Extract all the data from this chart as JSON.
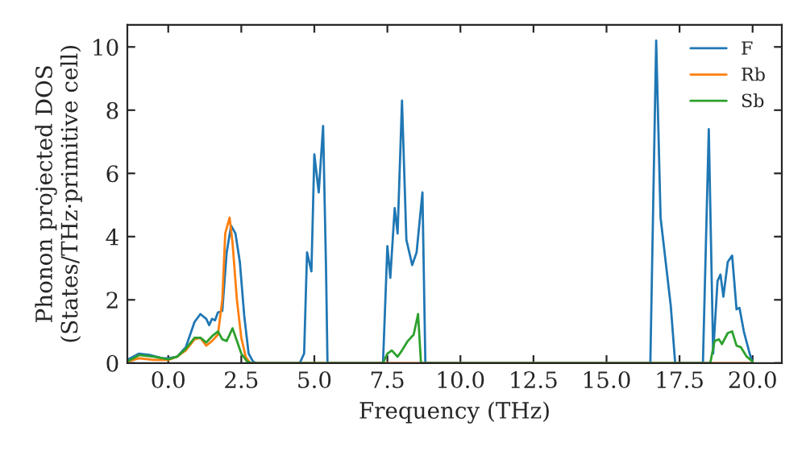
{
  "chart_data": {
    "type": "line",
    "xlabel": "Frequency (THz)",
    "ylabel": "Phonon projected DOS\n(States/THz·primitive cell)",
    "xlim": [
      -1.4,
      21.0
    ],
    "ylim": [
      0,
      10.7
    ],
    "xticks": [
      {
        "value": 0,
        "label": "0.0"
      },
      {
        "value": 2.5,
        "label": "2.5"
      },
      {
        "value": 5,
        "label": "5.0"
      },
      {
        "value": 7.5,
        "label": "7.5"
      },
      {
        "value": 10,
        "label": "10.0"
      },
      {
        "value": 12.5,
        "label": "12.5"
      },
      {
        "value": 15,
        "label": "15.0"
      },
      {
        "value": 17.5,
        "label": "17.5"
      },
      {
        "value": 20,
        "label": "20.0"
      }
    ],
    "yticks": [
      0,
      2,
      4,
      6,
      8,
      10
    ],
    "grid": false,
    "legend": "top right",
    "series": [
      {
        "name": "F",
        "color": "#1f77b4",
        "x": [
          -1.4,
          -1.0,
          -0.6,
          -0.2,
          0.0,
          0.3,
          0.6,
          0.9,
          1.1,
          1.3,
          1.4,
          1.5,
          1.6,
          1.7,
          1.85,
          2.0,
          2.15,
          2.3,
          2.45,
          2.6,
          2.75,
          2.9,
          3.0,
          4.5,
          4.65,
          4.75,
          4.9,
          5.0,
          5.15,
          5.3,
          5.4,
          5.45,
          7.35,
          7.5,
          7.6,
          7.75,
          7.85,
          8.0,
          8.15,
          8.35,
          8.5,
          8.7,
          8.8,
          16.5,
          16.7,
          16.85,
          17.2,
          17.35,
          18.3,
          18.5,
          18.65,
          18.8,
          18.9,
          19.0,
          19.15,
          19.3,
          19.45,
          19.55,
          19.7,
          19.9,
          20.0
        ],
        "values": [
          0.1,
          0.3,
          0.25,
          0.15,
          0.15,
          0.2,
          0.5,
          1.3,
          1.55,
          1.4,
          1.2,
          1.4,
          1.35,
          1.6,
          1.65,
          3.5,
          4.35,
          4.1,
          3.2,
          1.5,
          0.3,
          0.05,
          0,
          0,
          0.3,
          3.5,
          2.9,
          6.6,
          5.4,
          7.5,
          3.0,
          0,
          0,
          3.7,
          2.7,
          4.9,
          4.1,
          8.3,
          3.9,
          3.1,
          3.5,
          5.4,
          0,
          0,
          10.2,
          4.6,
          1.8,
          0,
          0,
          7.4,
          0.3,
          2.6,
          2.8,
          2.1,
          3.2,
          3.4,
          1.7,
          1.75,
          1.0,
          0.3,
          0
        ]
      },
      {
        "name": "Rb",
        "color": "#ff7f0e",
        "x": [
          -1.4,
          -1.0,
          -0.5,
          0.0,
          0.3,
          0.6,
          0.9,
          1.1,
          1.3,
          1.5,
          1.7,
          1.85,
          1.95,
          2.1,
          2.2,
          2.35,
          2.5,
          2.65,
          2.8,
          20.0
        ],
        "values": [
          0.05,
          0.15,
          0.1,
          0.1,
          0.2,
          0.4,
          0.75,
          0.8,
          0.55,
          0.7,
          0.9,
          2.0,
          4.1,
          4.6,
          3.8,
          2.0,
          0.8,
          0.2,
          0,
          0
        ]
      },
      {
        "name": "Sb",
        "color": "#2ca02c",
        "x": [
          -1.4,
          -1.0,
          -0.5,
          0.0,
          0.3,
          0.6,
          0.9,
          1.1,
          1.3,
          1.5,
          1.7,
          1.85,
          2.0,
          2.2,
          2.35,
          2.5,
          2.7,
          2.85,
          7.35,
          7.5,
          7.65,
          7.85,
          8.0,
          8.2,
          8.4,
          8.55,
          8.65,
          18.55,
          18.7,
          18.85,
          18.95,
          19.15,
          19.3,
          19.45,
          19.6,
          19.8,
          20.0
        ],
        "values": [
          0.05,
          0.25,
          0.2,
          0.12,
          0.2,
          0.45,
          0.8,
          0.8,
          0.65,
          0.85,
          1.0,
          0.75,
          0.7,
          1.1,
          0.7,
          0.3,
          0.05,
          0,
          0,
          0.3,
          0.4,
          0.2,
          0.4,
          0.7,
          0.9,
          1.55,
          0,
          0,
          0.7,
          0.75,
          0.6,
          0.95,
          1.0,
          0.55,
          0.5,
          0.2,
          0.05
        ]
      }
    ]
  }
}
